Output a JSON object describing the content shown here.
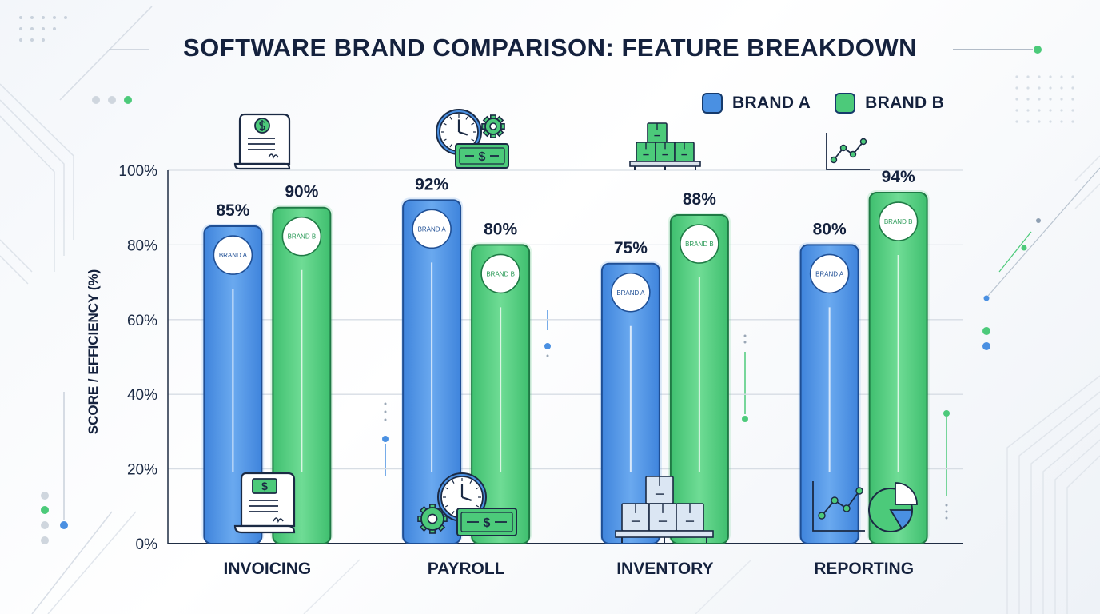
{
  "chart_data": {
    "type": "bar",
    "title": "SOFTWARE BRAND COMPARISON: FEATURE BREAKDOWN",
    "xlabel": "",
    "ylabel": "SCORE / EFFICIENCY (%)",
    "ylim": [
      0,
      100
    ],
    "yticks": [
      "0%",
      "20%",
      "40%",
      "60%",
      "80%",
      "100%"
    ],
    "ytick_values": [
      0,
      20,
      40,
      60,
      80,
      100
    ],
    "categories": [
      "INVOICING",
      "PAYROLL",
      "INVENTORY",
      "REPORTING"
    ],
    "category_icons": [
      "invoice-icon",
      "clock-money-icon",
      "boxes-pallet-icon",
      "line-graph-icon"
    ],
    "series": [
      {
        "name": "BRAND A",
        "badge": "BRAND A",
        "color": "#4a90e2",
        "values": [
          85,
          92,
          75,
          80
        ],
        "labels": [
          "85%",
          "92%",
          "75%",
          "80%"
        ]
      },
      {
        "name": "BRAND B",
        "badge": "BRAND B",
        "color": "#4cca7a",
        "values": [
          90,
          80,
          88,
          94
        ],
        "labels": [
          "90%",
          "80%",
          "88%",
          "94%"
        ]
      }
    ],
    "grid": true,
    "legend_position": "top-right"
  }
}
